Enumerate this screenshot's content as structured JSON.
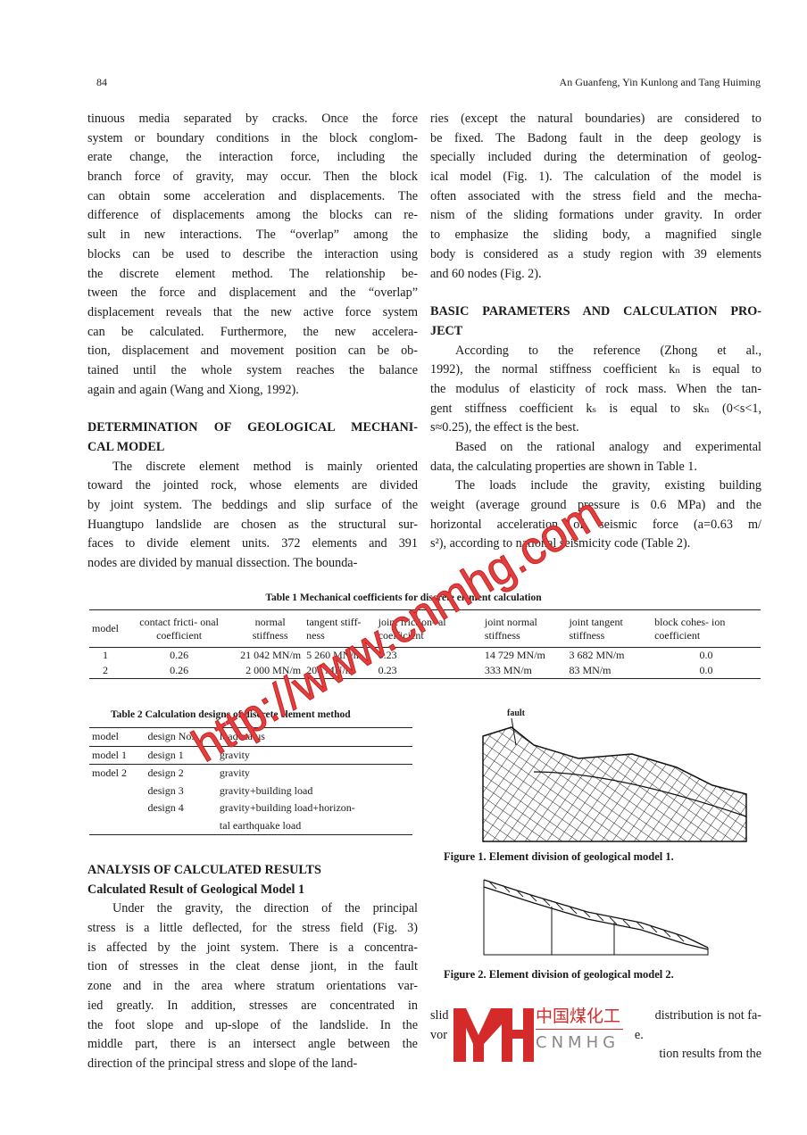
{
  "header": {
    "page_number": "84",
    "authors": "An Guanfeng, Yin Kunlong and Tang Huiming"
  },
  "left": {
    "p1": [
      "tinuous media separated by cracks. Once the force",
      "system or boundary conditions in the block conglom-",
      "erate change, the interaction force, including the",
      "branch force of gravity, may occur. Then the block",
      "can obtain some acceleration and displacements. The",
      "difference of displacements among the blocks can re-",
      "sult in new interactions. The “overlap” among the",
      "blocks can be used to describe the interaction using",
      "the discrete element method. The relationship be-",
      "tween the force and displacement and the “overlap”",
      "displacement reveals that the new active force system",
      "can be calculated. Furthermore, the new accelera-",
      "tion, displacement and movement position can be ob-",
      "tained until the whole system reaches the balance",
      "again and again (Wang and Xiong, 1992)."
    ],
    "h1": [
      "DETERMINATION OF GEOLOGICAL MECHANI-",
      "CAL MODEL"
    ],
    "p2": [
      "The discrete element method is mainly oriented",
      "toward the jointed rock, whose elements are divided",
      "by joint system. The beddings and slip surface of the",
      "Huangtupo landslide are chosen as the structural sur-",
      "faces to divide element units. 372 elements and 391",
      "nodes are divided by manual dissection. The bounda-"
    ],
    "h2": "ANALYSIS OF CALCULATED RESULTS",
    "h3": "Calculated Result of Geological Model 1",
    "p3": [
      "Under the gravity, the direction of the principal",
      "stress is a little deflected, for the stress field (Fig. 3)",
      "is affected by the joint system. There is a concentra-",
      "tion of stresses in the cleat dense jiont, in the fault",
      "zone and in the area where stratum orientations var-",
      "ied greatly. In addition, stresses are concentrated in",
      "the foot slope and  up-slope of the landslide. In the",
      "middle part, there is an intersect angle between the",
      "direction of the principal stress and slope of the land-"
    ]
  },
  "right": {
    "p1": [
      "ries (except the natural boundaries) are considered to",
      "be fixed. The Badong fault in the deep geology is",
      "specially included during the determination of geolog-",
      "ical model (Fig. 1). The calculation of the model is",
      "often associated with the stress field and the mecha-",
      "nism of the sliding formations under gravity. In order",
      "to emphasize the sliding body, a magnified single",
      "body is considered as a study region with 39 elements",
      "and 60 nodes (Fig. 2)."
    ],
    "h1": [
      "BASIC PARAMETERS AND CALCULATION PRO-",
      "JECT"
    ],
    "p2": [
      "According to the reference (Zhong et al.,",
      "1992), the normal stiffness coefficient kₙ is equal to",
      "the modulus of elasticity of rock mass. When the tan-",
      "gent stiffness coefficient kₛ is equal to skₙ (0<s<1,",
      "s≈0.25), the effect is the best."
    ],
    "p3": [
      "Based on the rational analogy and experimental",
      "data, the calculating properties are shown in Table 1."
    ],
    "p4": [
      "The loads include the gravity, existing building",
      "weight (average ground pressure is 0.6 MPa) and the",
      "horizontal acceleration of seismic force (a=0.63 m/",
      "s²), according to national seismicity code (Table 2)."
    ],
    "p5": [
      "slid",
      "distribution is not fa-",
      "vor",
      "e.",
      "tion results from the"
    ]
  },
  "table1": {
    "title": "Table 1   Mechanical coefficients for discrete element calculation",
    "headers": [
      "model",
      "contact fricti- onal coefficient",
      "normal stiffness",
      "tangent stiff- ness",
      "joint friction- al coefficient",
      "joint normal stiffness",
      "joint tangent stiffness",
      "block cohes- ion coefficient"
    ],
    "rows": [
      [
        "1",
        "0.26",
        "21 042 MN/m",
        "5 260 MN/m",
        "0.23",
        "14 729 MN/m",
        "3 682 MN/m",
        "0.0"
      ],
      [
        "2",
        "0.26",
        "2 000 MN/m",
        "200 MN/m",
        "0.23",
        "333 MN/m",
        "83 MN/m",
        "0.0"
      ]
    ]
  },
  "table2": {
    "title": "Table 2   Calculation designs of discrete element method",
    "headers": [
      "model",
      "design No.",
      "load status"
    ],
    "rows": [
      [
        "model 1",
        "design 1",
        "gravity"
      ],
      [
        "model 2",
        "design 2",
        "gravity"
      ],
      [
        "",
        "design 3",
        "gravity+building load"
      ],
      [
        "",
        "design 4",
        "gravity+building load+horizon-"
      ],
      [
        "",
        "",
        "tal earthquake load"
      ]
    ]
  },
  "fig1": {
    "label": "fault",
    "caption": "Figure 1. Element division of geological model 1."
  },
  "fig2": {
    "caption": "Figure 2. Element division of geological model 2."
  },
  "logo": {
    "cn": "中国煤化工",
    "en": "CNMHG"
  },
  "watermark": "http://www.cnmhg.com",
  "colors": {
    "watermark": "#d33333"
  }
}
